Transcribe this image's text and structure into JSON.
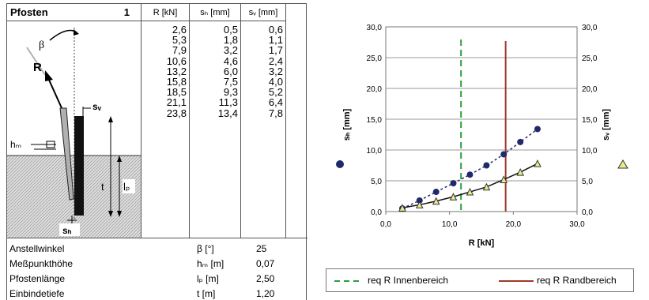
{
  "table": {
    "title": "Pfosten",
    "number": "1",
    "columns": [
      "R [kN]",
      "sₕ [mm]",
      "sᵥ [mm]"
    ],
    "rows": [
      [
        "2,6",
        "0,5",
        "0,6"
      ],
      [
        "5,3",
        "1,8",
        "1,1"
      ],
      [
        "7,9",
        "3,2",
        "1,7"
      ],
      [
        "10,6",
        "4,6",
        "2,4"
      ],
      [
        "13,2",
        "6,0",
        "3,2"
      ],
      [
        "15,8",
        "7,5",
        "4,0"
      ],
      [
        "18,5",
        "9,3",
        "5,2"
      ],
      [
        "21,1",
        "11,3",
        "6,4"
      ],
      [
        "23,8",
        "13,4",
        "7,8"
      ]
    ]
  },
  "diagram": {
    "beta": "β",
    "r": "R",
    "sv": "sᵥ",
    "hm": "hₘ",
    "t": "t",
    "lp": "lₚ",
    "sh": "sₕ",
    "colors": {
      "post": "#111111",
      "soil": "#cfcfcf"
    }
  },
  "params": [
    {
      "label": "Anstellwinkel",
      "symbol": "β [°]",
      "value": "25"
    },
    {
      "label": "Meßpunkthöhe",
      "symbol": "hₘ [m]",
      "value": "0,07"
    },
    {
      "label": "Pfostenlänge",
      "symbol": "lₚ [m]",
      "value": "2,50"
    },
    {
      "label": "Einbindetiefe",
      "symbol": "t [m]",
      "value": "1,20"
    }
  ],
  "chart_data": {
    "type": "scatter",
    "xlabel": "R [kN]",
    "ylabel_left": "sₕ [mm]",
    "ylabel_right": "sᵥ [mm]",
    "xlim": [
      0,
      30
    ],
    "ylim": [
      0,
      30
    ],
    "x_ticks": [
      "0,0",
      "10,0",
      "20,0",
      "30,0"
    ],
    "y_ticks": [
      "0,0",
      "5,0",
      "10,0",
      "15,0",
      "20,0",
      "25,0",
      "30,0"
    ],
    "grid": true,
    "series": [
      {
        "marker": "circle",
        "color": "#1f2a6b",
        "trend": "dotted",
        "x": [
          2.6,
          5.3,
          7.9,
          10.6,
          13.2,
          15.8,
          18.5,
          21.1,
          23.8
        ],
        "y": [
          0.5,
          1.8,
          3.2,
          4.6,
          6.0,
          7.5,
          9.3,
          11.3,
          13.4
        ]
      },
      {
        "marker": "triangle",
        "color": "#e8ec8a",
        "trend": "solid",
        "x": [
          2.6,
          5.3,
          7.9,
          10.6,
          13.2,
          15.8,
          18.5,
          21.1,
          23.8
        ],
        "y": [
          0.6,
          1.1,
          1.7,
          2.4,
          3.2,
          4.0,
          5.2,
          6.4,
          7.8
        ]
      }
    ],
    "vlines": [
      {
        "name": "req R Innenbereich",
        "x": 11.8,
        "color": "#2e9e3e",
        "style": "dashed"
      },
      {
        "name": "req R Randbereich",
        "x": 18.8,
        "color": "#a0382a",
        "style": "solid"
      }
    ],
    "legend": "bottom"
  }
}
